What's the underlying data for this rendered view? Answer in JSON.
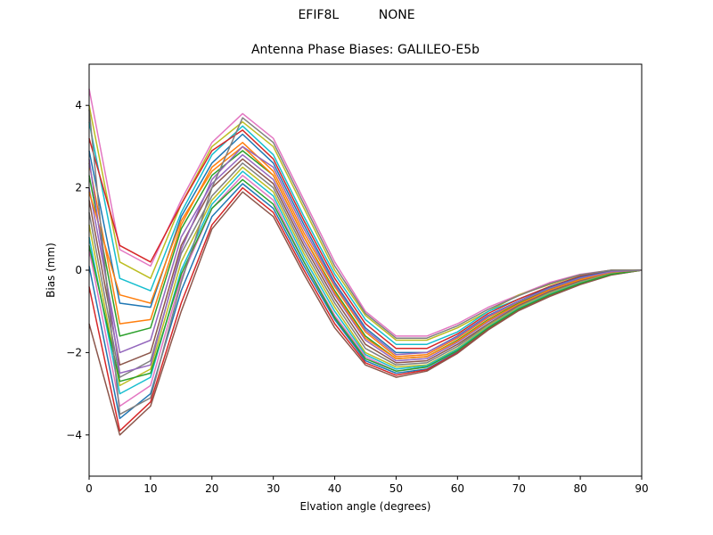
{
  "header": {
    "suptitle_left": "EFIF8L",
    "suptitle_right": "NONE"
  },
  "chart_data": {
    "type": "line",
    "title": "Antenna Phase Biases: GALILEO-E5b",
    "xlabel": "Elvation angle (degrees)",
    "ylabel": "Bias (mm)",
    "xlim": [
      0,
      90
    ],
    "ylim": [
      -5,
      5
    ],
    "xticks": [
      0,
      10,
      20,
      30,
      40,
      50,
      60,
      70,
      80,
      90
    ],
    "yticks": [
      -4,
      -2,
      0,
      2,
      4
    ],
    "grid": false,
    "legend": "none",
    "x": [
      0,
      5,
      10,
      15,
      20,
      25,
      30,
      35,
      40,
      45,
      50,
      55,
      60,
      65,
      70,
      75,
      80,
      85,
      90
    ],
    "series_note": "many overlapping series; representative curves sampled across the visible spread",
    "series": [
      {
        "color": "#e377c2",
        "values": [
          4.4,
          0.5,
          0.1,
          1.7,
          3.1,
          3.8,
          3.2,
          1.7,
          0.2,
          -1.0,
          -1.6,
          -1.6,
          -1.3,
          -0.9,
          -0.6,
          -0.3,
          -0.1,
          0.0,
          0.0
        ]
      },
      {
        "color": "#bcbd22",
        "values": [
          4.0,
          0.2,
          -0.2,
          1.6,
          3.0,
          3.6,
          3.0,
          1.5,
          0.0,
          -1.1,
          -1.7,
          -1.7,
          -1.4,
          -1.0,
          -0.6,
          -0.35,
          -0.12,
          0.0,
          0.0
        ]
      },
      {
        "color": "#17becf",
        "values": [
          3.6,
          -0.2,
          -0.5,
          1.4,
          2.8,
          3.5,
          2.8,
          1.3,
          -0.1,
          -1.2,
          -1.8,
          -1.8,
          -1.5,
          -1.0,
          -0.7,
          -0.4,
          -0.15,
          -0.02,
          0.0
        ]
      },
      {
        "color": "#d62728",
        "values": [
          3.2,
          0.6,
          0.2,
          1.6,
          2.9,
          3.4,
          2.7,
          1.2,
          -0.2,
          -1.3,
          -1.9,
          -1.9,
          -1.55,
          -1.05,
          -0.7,
          -0.4,
          -0.15,
          -0.02,
          0.0
        ]
      },
      {
        "color": "#1f77b4",
        "values": [
          2.9,
          -0.8,
          -0.9,
          1.3,
          2.6,
          3.3,
          2.6,
          1.1,
          -0.3,
          -1.4,
          -2.0,
          -2.0,
          -1.6,
          -1.1,
          -0.75,
          -0.42,
          -0.17,
          -0.03,
          0.0
        ]
      },
      {
        "color": "#ff7f0e",
        "values": [
          2.6,
          -1.3,
          -1.2,
          1.1,
          2.5,
          3.1,
          2.4,
          0.9,
          -0.4,
          -1.5,
          -2.1,
          -2.05,
          -1.65,
          -1.15,
          -0.78,
          -0.45,
          -0.2,
          -0.04,
          0.0
        ]
      },
      {
        "color": "#2ca02c",
        "values": [
          2.3,
          -1.6,
          -1.4,
          1.0,
          2.3,
          2.9,
          2.3,
          0.8,
          -0.5,
          -1.6,
          -2.15,
          -2.1,
          -1.7,
          -1.2,
          -0.8,
          -0.47,
          -0.22,
          -0.05,
          0.0
        ]
      },
      {
        "color": "#9467bd",
        "values": [
          2.0,
          -2.0,
          -1.7,
          0.8,
          2.1,
          2.8,
          2.2,
          0.7,
          -0.6,
          -1.7,
          -2.2,
          -2.15,
          -1.75,
          -1.25,
          -0.83,
          -0.5,
          -0.24,
          -0.06,
          0.0
        ]
      },
      {
        "color": "#8c564b",
        "values": [
          1.7,
          -2.3,
          -2.0,
          0.6,
          2.0,
          2.7,
          2.1,
          0.6,
          -0.7,
          -1.8,
          -2.25,
          -2.2,
          -1.8,
          -1.3,
          -0.86,
          -0.52,
          -0.26,
          -0.07,
          0.0
        ]
      },
      {
        "color": "#7f7f7f",
        "values": [
          1.4,
          -2.6,
          -2.2,
          0.4,
          1.8,
          2.6,
          2.0,
          0.5,
          -0.8,
          -1.9,
          -2.3,
          -2.25,
          -1.85,
          -1.32,
          -0.88,
          -0.54,
          -0.28,
          -0.08,
          0.0
        ]
      },
      {
        "color": "#bcbd22",
        "values": [
          1.1,
          -2.8,
          -2.4,
          0.2,
          1.7,
          2.5,
          1.9,
          0.4,
          -0.9,
          -2.0,
          -2.35,
          -2.3,
          -1.9,
          -1.35,
          -0.9,
          -0.56,
          -0.3,
          -0.09,
          0.0
        ]
      },
      {
        "color": "#17becf",
        "values": [
          0.8,
          -3.0,
          -2.6,
          0.0,
          1.6,
          2.4,
          1.8,
          0.3,
          -1.0,
          -2.05,
          -2.4,
          -2.32,
          -1.92,
          -1.38,
          -0.92,
          -0.58,
          -0.31,
          -0.1,
          0.0
        ]
      },
      {
        "color": "#e377c2",
        "values": [
          0.5,
          -3.3,
          -2.8,
          -0.2,
          1.5,
          2.3,
          1.7,
          0.2,
          -1.1,
          -2.1,
          -2.45,
          -2.35,
          -1.95,
          -1.4,
          -0.94,
          -0.6,
          -0.32,
          -0.1,
          0.0
        ]
      },
      {
        "color": "#1f77b4",
        "values": [
          0.1,
          -3.6,
          -3.0,
          -0.5,
          1.3,
          2.1,
          1.5,
          0.1,
          -1.2,
          -2.2,
          -2.5,
          -2.4,
          -1.98,
          -1.42,
          -0.96,
          -0.62,
          -0.33,
          -0.11,
          0.0
        ]
      },
      {
        "color": "#d62728",
        "values": [
          -0.4,
          -3.9,
          -3.2,
          -0.8,
          1.1,
          2.0,
          1.4,
          0.0,
          -1.3,
          -2.25,
          -2.55,
          -2.42,
          -2.0,
          -1.44,
          -0.97,
          -0.63,
          -0.34,
          -0.11,
          0.0
        ]
      },
      {
        "color": "#8c564b",
        "values": [
          -1.3,
          -4.0,
          -3.3,
          -1.0,
          1.0,
          1.9,
          1.3,
          -0.1,
          -1.4,
          -2.3,
          -2.6,
          -2.45,
          -2.02,
          -1.45,
          -0.98,
          -0.64,
          -0.35,
          -0.12,
          0.0
        ]
      },
      {
        "color": "#2ca02c",
        "values": [
          0.6,
          -2.7,
          -2.5,
          -0.1,
          1.5,
          2.2,
          1.6,
          0.2,
          -1.15,
          -2.15,
          -2.45,
          -2.35,
          -1.95,
          -1.4,
          -0.94,
          -0.6,
          -0.32,
          -0.1,
          0.0
        ]
      },
      {
        "color": "#ff7f0e",
        "values": [
          1.9,
          -0.6,
          -0.8,
          1.2,
          2.4,
          3.0,
          2.3,
          0.8,
          -0.55,
          -1.65,
          -2.15,
          -2.1,
          -1.72,
          -1.22,
          -0.82,
          -0.48,
          -0.23,
          -0.05,
          0.0
        ]
      },
      {
        "color": "#9467bd",
        "values": [
          2.7,
          -2.5,
          -2.3,
          0.5,
          2.2,
          3.0,
          2.5,
          1.0,
          -0.35,
          -1.45,
          -2.05,
          -2.0,
          -1.62,
          -1.12,
          -0.76,
          -0.44,
          -0.19,
          -0.04,
          0.0
        ]
      },
      {
        "color": "#7f7f7f",
        "values": [
          3.9,
          -3.5,
          -3.1,
          -0.3,
          2.0,
          3.7,
          3.1,
          1.6,
          0.1,
          -1.05,
          -1.65,
          -1.65,
          -1.35,
          -0.95,
          -0.62,
          -0.33,
          -0.11,
          0.0,
          0.0
        ]
      }
    ]
  }
}
